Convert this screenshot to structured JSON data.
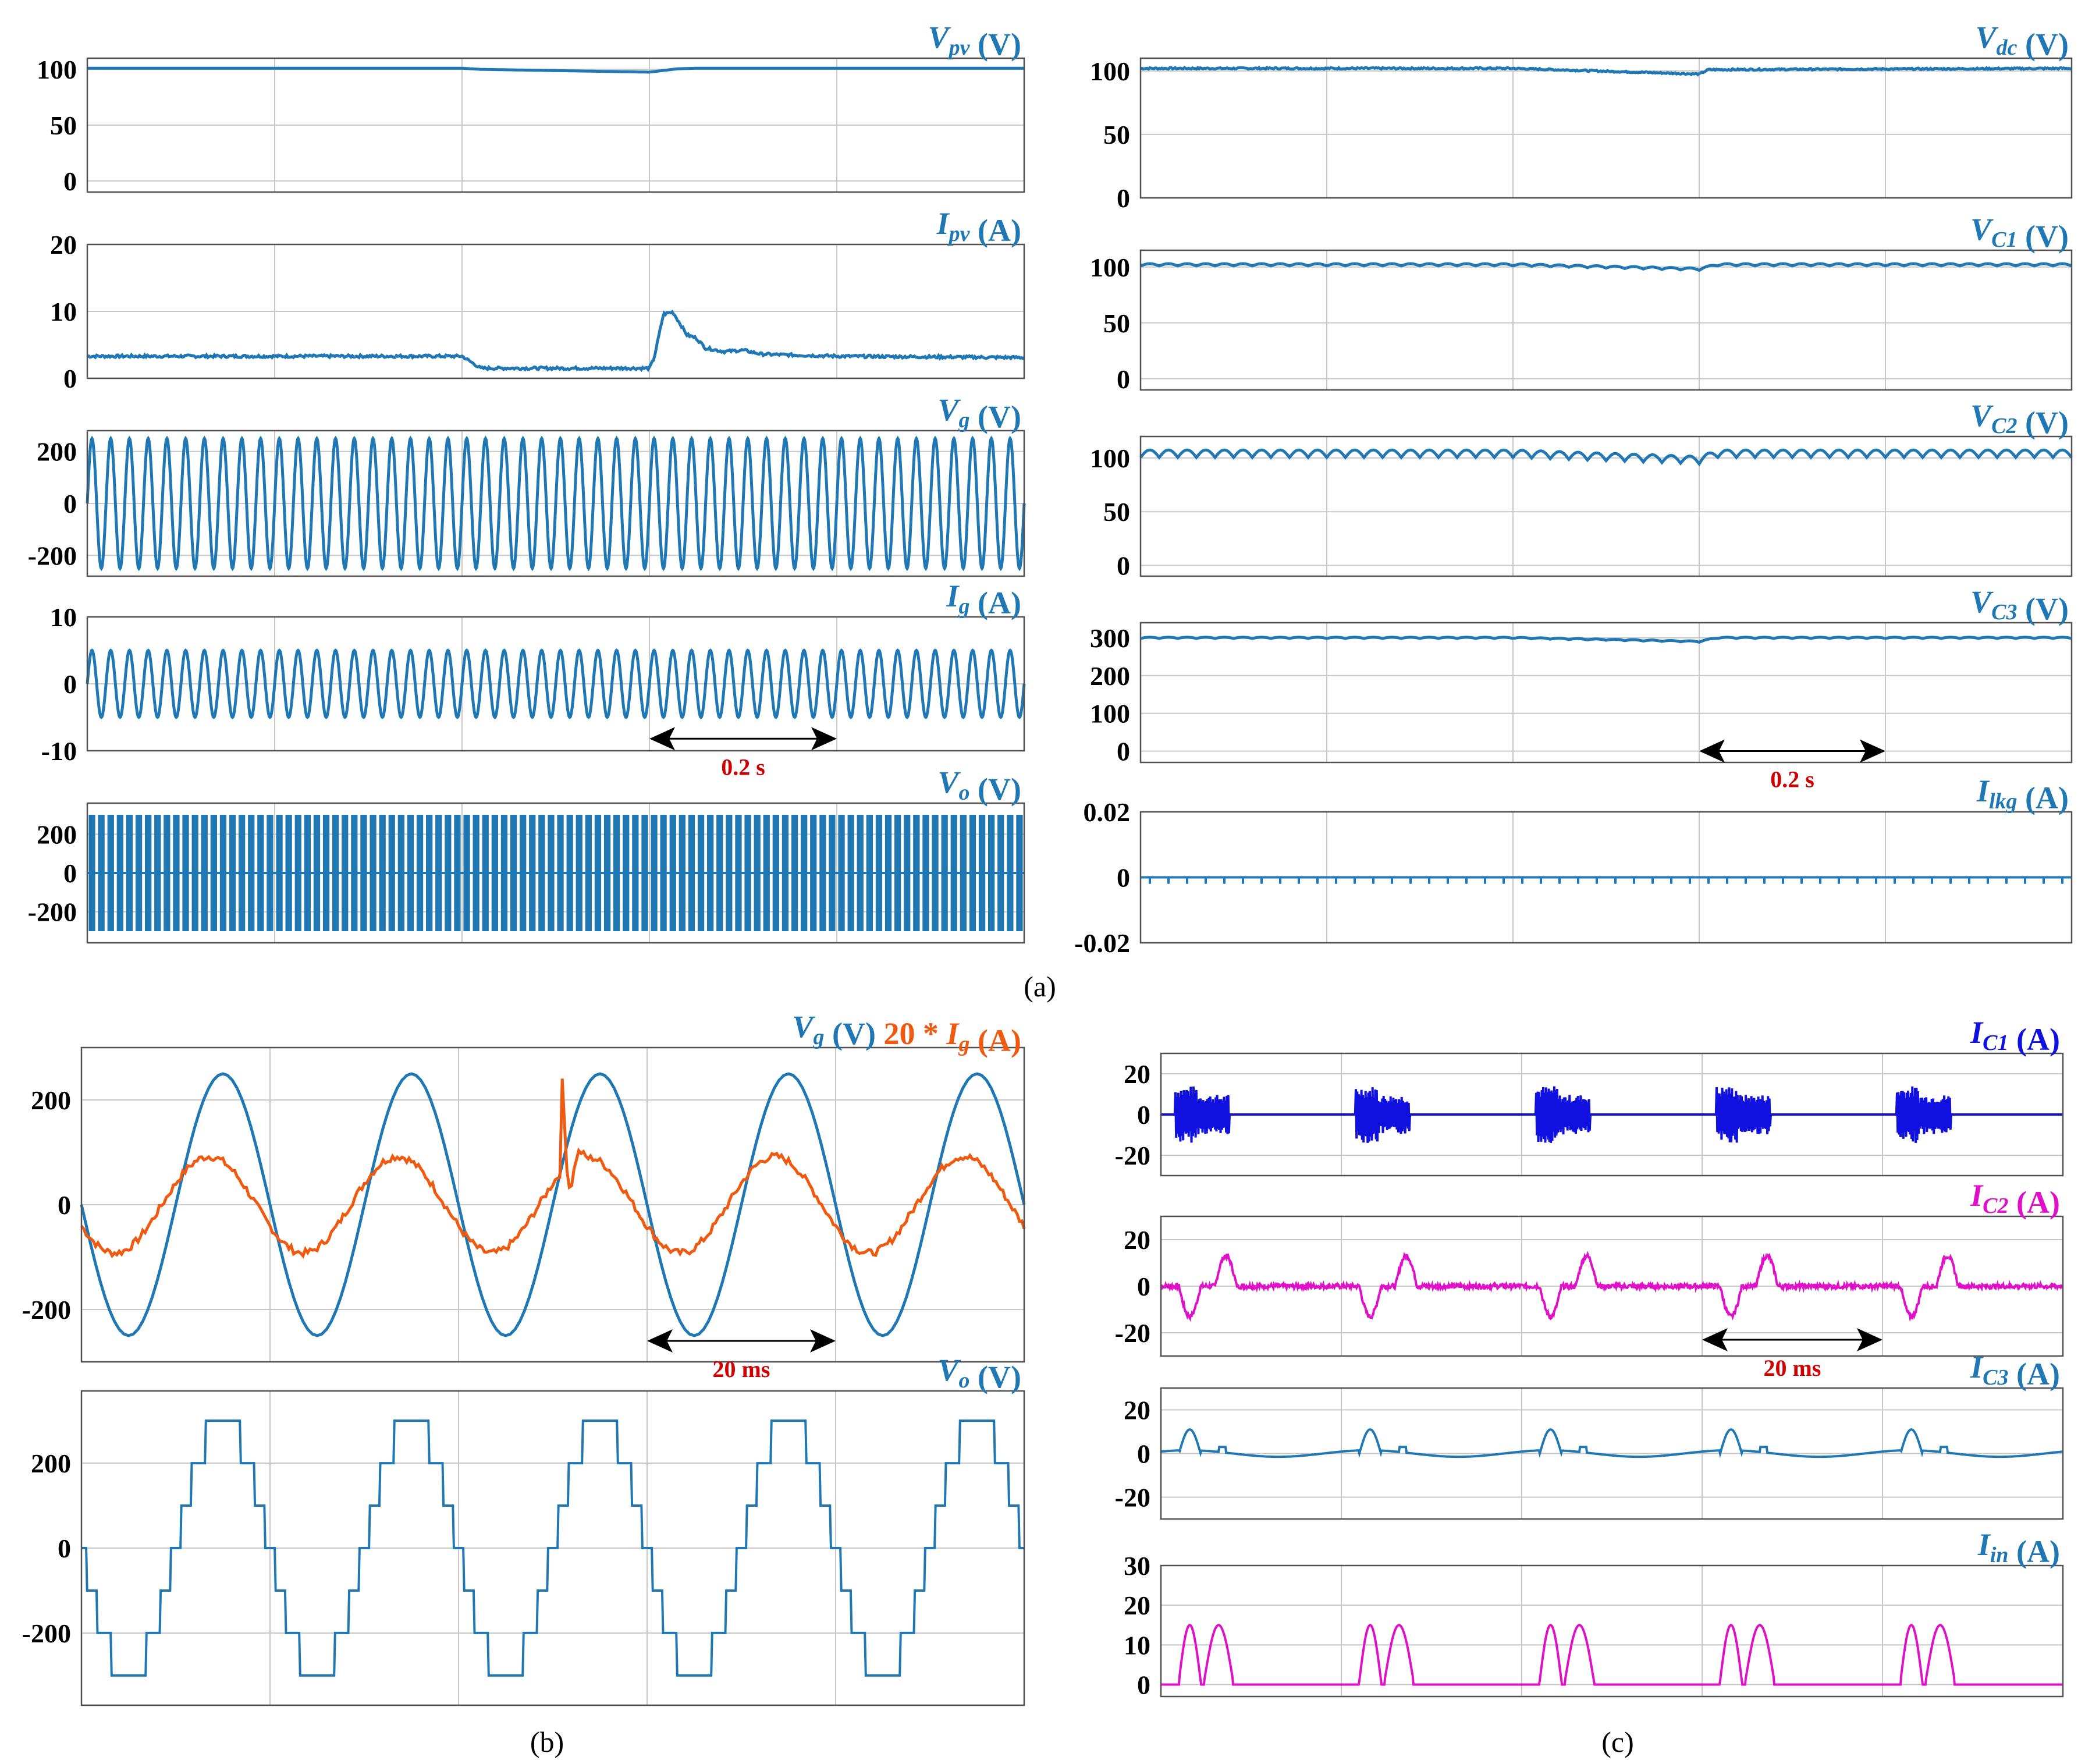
{
  "colors": {
    "blue": "#1f77b4",
    "deep_blue": "#1010e0",
    "orange": "#f05a10",
    "magenta": "#e010c8",
    "red": "#d00000",
    "grid": "#c8c8c8",
    "axis": "#505050",
    "ink": "#000000"
  },
  "sublabels": [
    "(a)",
    "(b)",
    "(c)"
  ],
  "chart_data": [
    {
      "id": "a1",
      "type": "line",
      "xlim": [
        0,
        1
      ],
      "ylim": [
        -10,
        110
      ],
      "yticks": [
        0,
        50,
        100
      ],
      "xgrid": 5,
      "ylabel": "",
      "title_parts": [
        {
          "t": "V",
          "style": "italic"
        },
        {
          "t": "pv",
          "style": "sub"
        },
        {
          "t": " (V)",
          "style": "normal"
        }
      ],
      "title_color": "blue",
      "series": [
        {
          "name": "",
          "color": "blue",
          "kind": "seg",
          "pts": [
            [
              0,
              101
            ],
            [
              0.4,
              101
            ],
            [
              0.42,
              100
            ],
            [
              0.6,
              97.5
            ],
            [
              0.63,
              100.5
            ],
            [
              0.65,
              101
            ],
            [
              1,
              101
            ]
          ]
        }
      ]
    },
    {
      "id": "a2",
      "type": "line",
      "xlim": [
        0,
        1
      ],
      "ylim": [
        0,
        20
      ],
      "yticks": [
        0,
        10,
        20
      ],
      "xgrid": 5,
      "ylabel": "",
      "title_parts": [
        {
          "t": "I",
          "style": "italic"
        },
        {
          "t": "pv",
          "style": "sub"
        },
        {
          "t": " (A)",
          "style": "normal"
        }
      ],
      "title_color": "blue",
      "series": [
        {
          "name": "",
          "color": "blue",
          "kind": "seg",
          "noise": 0.2,
          "pts": [
            [
              0,
              3.3
            ],
            [
              0.4,
              3.3
            ],
            [
              0.42,
              1.5
            ],
            [
              0.6,
              1.5
            ],
            [
              0.605,
              3
            ],
            [
              0.615,
              9.6
            ],
            [
              0.625,
              9.9
            ],
            [
              0.64,
              6.5
            ],
            [
              0.65,
              6
            ],
            [
              0.66,
              4.5
            ],
            [
              0.68,
              4
            ],
            [
              0.7,
              4.2
            ],
            [
              0.72,
              3.6
            ],
            [
              0.8,
              3.3
            ],
            [
              1,
              3.1
            ]
          ]
        }
      ]
    },
    {
      "id": "a3",
      "type": "line",
      "xlim": [
        0,
        1
      ],
      "ylim": [
        -280,
        280
      ],
      "yticks": [
        -200,
        0,
        200
      ],
      "xgrid": 5,
      "ylabel": "",
      "title_parts": [
        {
          "t": "V",
          "style": "italic"
        },
        {
          "t": "g",
          "style": "sub"
        },
        {
          "t": " (V)",
          "style": "normal"
        }
      ],
      "title_color": "blue",
      "series": [
        {
          "name": "",
          "color": "blue",
          "kind": "sine",
          "amp": 250,
          "cycles": 50,
          "phase": 0
        }
      ]
    },
    {
      "id": "a4",
      "type": "line",
      "xlim": [
        0,
        1
      ],
      "ylim": [
        -10,
        10
      ],
      "yticks": [
        -10,
        0,
        10
      ],
      "xgrid": 5,
      "ylabel": "",
      "title_parts": [
        {
          "t": "I",
          "style": "italic"
        },
        {
          "t": "g",
          "style": "sub"
        },
        {
          "t": " (A)",
          "style": "normal"
        }
      ],
      "title_color": "blue",
      "annotation": {
        "text": "0.2 s",
        "x1": 0.6,
        "x2": 0.8,
        "y": -8.2
      },
      "series": [
        {
          "name": "",
          "color": "blue",
          "kind": "sine",
          "amp": 5,
          "cycles": 50,
          "phase": 0
        }
      ]
    },
    {
      "id": "a5",
      "type": "line",
      "xlim": [
        0,
        1
      ],
      "ylim": [
        -360,
        360
      ],
      "yticks": [
        -200,
        0,
        200
      ],
      "xgrid": 5,
      "ylabel": "",
      "title_parts": [
        {
          "t": "V",
          "style": "italic"
        },
        {
          "t": "o",
          "style": "sub"
        },
        {
          "t": " (V)",
          "style": "normal"
        }
      ],
      "title_color": "blue",
      "series": [
        {
          "name": "",
          "color": "blue",
          "kind": "band",
          "amp": 300,
          "cycles": 50
        }
      ]
    },
    {
      "id": "a6",
      "type": "line",
      "xlim": [
        0,
        1
      ],
      "ylim": [
        0,
        110
      ],
      "yticks": [
        0,
        50,
        100
      ],
      "xgrid": 5,
      "ylabel": "",
      "title_parts": [
        {
          "t": "V",
          "style": "italic"
        },
        {
          "t": "dc",
          "style": "sub"
        },
        {
          "t": " (V)",
          "style": "normal"
        }
      ],
      "title_color": "blue",
      "series": [
        {
          "name": "",
          "color": "blue",
          "kind": "seg",
          "noise": 0.6,
          "pts": [
            [
              0,
              102
            ],
            [
              0.4,
              102
            ],
            [
              0.6,
              97.5
            ],
            [
              0.61,
              101
            ],
            [
              1,
              102
            ]
          ]
        }
      ]
    },
    {
      "id": "a7",
      "type": "line",
      "xlim": [
        0,
        1
      ],
      "ylim": [
        -10,
        115
      ],
      "yticks": [
        0,
        50,
        100
      ],
      "xgrid": 5,
      "ylabel": "",
      "title_parts": [
        {
          "t": "V",
          "style": "italic"
        },
        {
          "t": "C1",
          "style": "sub"
        },
        {
          "t": " (V)",
          "style": "normal"
        }
      ],
      "title_color": "blue",
      "series": [
        {
          "name": "",
          "color": "blue",
          "kind": "ripple",
          "base": 102,
          "dip": 4,
          "ripple": 2,
          "cycles": 50
        }
      ]
    },
    {
      "id": "a8",
      "type": "line",
      "xlim": [
        0,
        1
      ],
      "ylim": [
        -10,
        120
      ],
      "yticks": [
        0,
        50,
        100
      ],
      "xgrid": 5,
      "ylabel": "",
      "title_parts": [
        {
          "t": "V",
          "style": "italic"
        },
        {
          "t": "C2",
          "style": "sub"
        },
        {
          "t": " (V)",
          "style": "normal"
        }
      ],
      "title_color": "blue",
      "series": [
        {
          "name": "",
          "color": "blue",
          "kind": "ripple",
          "base": 104,
          "dip": 6,
          "ripple": 7,
          "cycles": 50
        }
      ]
    },
    {
      "id": "a9",
      "type": "line",
      "xlim": [
        0,
        1
      ],
      "ylim": [
        -30,
        340
      ],
      "yticks": [
        0,
        100,
        200,
        300
      ],
      "xgrid": 5,
      "ylabel": "",
      "title_parts": [
        {
          "t": "V",
          "style": "italic"
        },
        {
          "t": "C3",
          "style": "sub"
        },
        {
          "t": " (V)",
          "style": "normal"
        }
      ],
      "title_color": "blue",
      "annotation": {
        "text": "0.2 s",
        "x1": 0.6,
        "x2": 0.8,
        "y": 0
      },
      "series": [
        {
          "name": "",
          "color": "blue",
          "kind": "ripple",
          "base": 300,
          "dip": 10,
          "ripple": 3,
          "cycles": 50
        }
      ]
    },
    {
      "id": "a10",
      "type": "line",
      "xlim": [
        0,
        1
      ],
      "ylim": [
        -0.02,
        0.02
      ],
      "yticks": [
        -0.02,
        0,
        0.02
      ],
      "xgrid": 5,
      "ylabel": "",
      "title_parts": [
        {
          "t": "I",
          "style": "italic"
        },
        {
          "t": "lkg",
          "style": "sub"
        },
        {
          "t": " (A)",
          "style": "normal"
        }
      ],
      "title_color": "blue",
      "series": [
        {
          "name": "",
          "color": "blue",
          "kind": "spikes",
          "level": 0,
          "spike": -0.002,
          "count": 50
        }
      ]
    },
    {
      "id": "b1",
      "type": "line",
      "xlim": [
        0,
        0.1
      ],
      "ylim": [
        -300,
        300
      ],
      "yticks": [
        -200,
        0,
        200
      ],
      "xgrid": 5,
      "ylabel": "",
      "title_parts": [
        {
          "t": "V",
          "style": "italic"
        },
        {
          "t": "g",
          "style": "sub"
        },
        {
          "t": " (V)   ",
          "style": "normal"
        },
        {
          "t": "20 * ",
          "style": "normal",
          "color": "orange"
        },
        {
          "t": "I",
          "style": "italic",
          "color": "orange"
        },
        {
          "t": "g",
          "style": "sub",
          "color": "orange"
        },
        {
          "t": " (A)",
          "style": "normal",
          "color": "orange"
        }
      ],
      "title_color": "blue",
      "annotation": {
        "text": "20 ms",
        "x1": 0.06,
        "x2": 0.08,
        "y": -260
      },
      "series": [
        {
          "name": "V_g",
          "color": "blue",
          "kind": "sine",
          "amp": 250,
          "cycles": 5,
          "phase": 3.14159
        },
        {
          "name": "20*I_g",
          "color": "orange",
          "kind": "noisysine",
          "amp": 92,
          "cycles": 5,
          "phase": 3.6,
          "spike_at": 0.051,
          "spike": 170
        }
      ]
    },
    {
      "id": "b2",
      "type": "line",
      "xlim": [
        0,
        0.1
      ],
      "ylim": [
        -370,
        370
      ],
      "yticks": [
        -200,
        0,
        200
      ],
      "xgrid": 5,
      "ylabel": "",
      "title_parts": [
        {
          "t": "V",
          "style": "italic"
        },
        {
          "t": "o",
          "style": "sub"
        },
        {
          "t": " (V)",
          "style": "normal"
        }
      ],
      "title_color": "blue",
      "series": [
        {
          "name": "",
          "color": "blue",
          "kind": "stair",
          "amp": 300,
          "cycles": 5,
          "phase": 3.14159
        }
      ]
    },
    {
      "id": "c1",
      "type": "line",
      "xlim": [
        0,
        0.1
      ],
      "ylim": [
        -30,
        30
      ],
      "yticks": [
        -20,
        0,
        20
      ],
      "xgrid": 5,
      "ylabel": "",
      "title_parts": [
        {
          "t": "I",
          "style": "italic"
        },
        {
          "t": "C1",
          "style": "sub"
        },
        {
          "t": " (A)",
          "style": "normal"
        }
      ],
      "title_color": "deep_blue",
      "series": [
        {
          "name": "",
          "color": "deep_blue",
          "kind": "burst",
          "mode": "c1",
          "cycles": 5
        }
      ]
    },
    {
      "id": "c2",
      "type": "line",
      "xlim": [
        0,
        0.1
      ],
      "ylim": [
        -30,
        30
      ],
      "yticks": [
        -20,
        0,
        20
      ],
      "xgrid": 5,
      "ylabel": "",
      "title_parts": [
        {
          "t": "I",
          "style": "italic"
        },
        {
          "t": "C2",
          "style": "sub"
        },
        {
          "t": " (A)",
          "style": "normal"
        }
      ],
      "title_color": "magenta",
      "annotation": {
        "text": "20 ms",
        "x1": 0.06,
        "x2": 0.08,
        "y": -23
      },
      "series": [
        {
          "name": "",
          "color": "magenta",
          "kind": "burst",
          "mode": "c2",
          "cycles": 5
        }
      ]
    },
    {
      "id": "c3",
      "type": "line",
      "xlim": [
        0,
        0.1
      ],
      "ylim": [
        -30,
        30
      ],
      "yticks": [
        -20,
        0,
        20
      ],
      "xgrid": 5,
      "ylabel": "",
      "title_parts": [
        {
          "t": "I",
          "style": "italic"
        },
        {
          "t": "C3",
          "style": "sub"
        },
        {
          "t": " (A)",
          "style": "normal"
        }
      ],
      "title_color": "blue",
      "series": [
        {
          "name": "",
          "color": "blue",
          "kind": "burst",
          "mode": "c3",
          "cycles": 5
        }
      ]
    },
    {
      "id": "c4",
      "type": "line",
      "xlim": [
        0,
        0.1
      ],
      "ylim": [
        -3,
        30
      ],
      "yticks": [
        0,
        10,
        20,
        30
      ],
      "xgrid": 5,
      "ylabel": "",
      "title_parts": [
        {
          "t": "I",
          "style": "italic"
        },
        {
          "t": "in",
          "style": "sub"
        },
        {
          "t": " (A)",
          "style": "normal"
        }
      ],
      "title_color": "blue",
      "series": [
        {
          "name": "",
          "color": "magenta",
          "kind": "burst",
          "mode": "in",
          "cycles": 5
        }
      ]
    }
  ]
}
